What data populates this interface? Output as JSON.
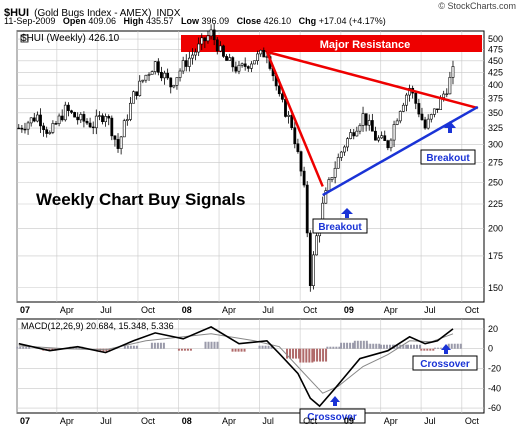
{
  "header": {
    "symbol": "$HUI",
    "index_name": "(Gold Bugs Index - AMEX)",
    "exchange": "INDX",
    "date": "11-Sep-2009",
    "open_label": "Open",
    "open": "409.06",
    "high_label": "High",
    "high": "435.57",
    "low_label": "Low",
    "low": "396.09",
    "close_label": "Close",
    "close": "426.10",
    "chg_label": "Chg",
    "chg": "+17.04 (+4.17%)",
    "logo": "© StockCharts.com"
  },
  "colors": {
    "resistance": "#ee0000",
    "support": "#1a33d6",
    "arrow": "#1a33d6",
    "candle": "#000000",
    "hist_pos": "#9a9aaa",
    "hist_neg": "#b06a6a",
    "grid": "#c8c8c8"
  },
  "chart_data": [
    {
      "type": "candlestick",
      "legend": "$HUI (Weekly) 426.10",
      "yscale": "log",
      "ylim": [
        140,
        520
      ],
      "yticks": [
        150,
        175,
        200,
        225,
        250,
        275,
        300,
        325,
        350,
        375,
        400,
        425,
        450,
        475,
        500,
        525
      ],
      "xticks": [
        "07",
        "Apr",
        "Jul",
        "Oct",
        "08",
        "Apr",
        "Jul",
        "Oct",
        "09",
        "Apr",
        "Jul",
        "Oct"
      ],
      "x_range": [
        "2007-01",
        "2009-11"
      ],
      "annotations": {
        "title": "Weekly Chart Buy Signals",
        "resistance_band": "Major Resistance",
        "breakout_1": "Breakout",
        "breakout_2": "Breakout"
      },
      "series": {
        "close_path": [
          [
            "2007-01-05",
            325
          ],
          [
            "2007-02-16",
            345
          ],
          [
            "2007-03-16",
            315
          ],
          [
            "2007-04-20",
            355
          ],
          [
            "2007-05-18",
            340
          ],
          [
            "2007-06-22",
            330
          ],
          [
            "2007-07-20",
            350
          ],
          [
            "2007-08-17",
            295
          ],
          [
            "2007-09-21",
            380
          ],
          [
            "2007-10-19",
            420
          ],
          [
            "2007-11-09",
            445
          ],
          [
            "2007-12-14",
            400
          ],
          [
            "2008-01-11",
            440
          ],
          [
            "2008-02-15",
            480
          ],
          [
            "2008-03-14",
            515
          ],
          [
            "2008-04-11",
            455
          ],
          [
            "2008-05-16",
            430
          ],
          [
            "2008-06-20",
            455
          ],
          [
            "2008-07-18",
            470
          ],
          [
            "2008-08-15",
            375
          ],
          [
            "2008-09-12",
            330
          ],
          [
            "2008-10-10",
            240
          ],
          [
            "2008-10-24",
            155
          ],
          [
            "2008-11-14",
            210
          ],
          [
            "2008-12-12",
            260
          ],
          [
            "2009-01-09",
            300
          ],
          [
            "2009-02-20",
            345
          ],
          [
            "2009-03-20",
            310
          ],
          [
            "2009-04-17",
            300
          ],
          [
            "2009-05-15",
            360
          ],
          [
            "2009-06-05",
            395
          ],
          [
            "2009-07-10",
            325
          ],
          [
            "2009-08-07",
            360
          ],
          [
            "2009-08-28",
            395
          ],
          [
            "2009-09-11",
            426
          ]
        ]
      },
      "resistance_lines": [
        {
          "from": [
            "2008-07-18",
            470
          ],
          "to": [
            "2008-11-21",
            245
          ]
        },
        {
          "from": [
            "2008-07-18",
            470
          ],
          "to": [
            "2009-11-06",
            358
          ]
        }
      ],
      "support_line": {
        "from": [
          "2008-11-21",
          235
        ],
        "to": [
          "2009-11-06",
          360
        ]
      }
    },
    {
      "type": "line",
      "legend": "MACD(12,26,9) 20.684, 15.348, 5.336",
      "series": [
        {
          "name": "MACD",
          "values": "20.684"
        },
        {
          "name": "Signal",
          "values": "15.348"
        },
        {
          "name": "Histogram",
          "values": "5.336"
        }
      ],
      "ylim": [
        -65,
        30
      ],
      "yticks": [
        20,
        0,
        -20,
        -40,
        -60
      ],
      "xticks": [
        "07",
        "Apr",
        "Jul",
        "Oct",
        "08",
        "Apr",
        "Jul",
        "Oct",
        "09",
        "Apr",
        "Jul",
        "Oct"
      ],
      "annotations": {
        "crossover_1": "Crossover",
        "crossover_2": "Crossover"
      },
      "macd_path": [
        [
          "2007-01-05",
          5
        ],
        [
          "2007-03-16",
          -2
        ],
        [
          "2007-05-18",
          2
        ],
        [
          "2007-07-20",
          -4
        ],
        [
          "2007-09-21",
          8
        ],
        [
          "2007-11-09",
          16
        ],
        [
          "2008-01-11",
          10
        ],
        [
          "2008-03-14",
          22
        ],
        [
          "2008-05-16",
          5
        ],
        [
          "2008-07-18",
          8
        ],
        [
          "2008-08-15",
          -5
        ],
        [
          "2008-09-26",
          -25
        ],
        [
          "2008-10-24",
          -50
        ],
        [
          "2008-11-14",
          -58
        ],
        [
          "2008-12-19",
          -40
        ],
        [
          "2009-02-13",
          -10
        ],
        [
          "2009-04-17",
          -2
        ],
        [
          "2009-06-05",
          12
        ],
        [
          "2009-07-10",
          5
        ],
        [
          "2009-08-07",
          8
        ],
        [
          "2009-09-11",
          20
        ]
      ],
      "signal_path": [
        [
          "2007-01-05",
          3
        ],
        [
          "2007-04-20",
          0
        ],
        [
          "2007-07-20",
          -1
        ],
        [
          "2007-10-19",
          8
        ],
        [
          "2008-01-11",
          12
        ],
        [
          "2008-03-14",
          15
        ],
        [
          "2008-06-20",
          8
        ],
        [
          "2008-08-15",
          2
        ],
        [
          "2008-10-10",
          -25
        ],
        [
          "2008-11-21",
          -45
        ],
        [
          "2008-12-26",
          -38
        ],
        [
          "2009-02-20",
          -18
        ],
        [
          "2009-04-17",
          -6
        ],
        [
          "2009-06-05",
          8
        ],
        [
          "2009-07-24",
          7
        ],
        [
          "2009-09-11",
          15
        ]
      ],
      "histogram": [
        [
          "2007-01",
          2
        ],
        [
          "2007-03",
          -2
        ],
        [
          "2007-05",
          2
        ],
        [
          "2007-07",
          -3
        ],
        [
          "2007-09",
          3
        ],
        [
          "2007-11",
          6
        ],
        [
          "2008-01",
          -2
        ],
        [
          "2008-03",
          7
        ],
        [
          "2008-05",
          -3
        ],
        [
          "2008-07",
          3
        ],
        [
          "2008-09",
          -10
        ],
        [
          "2008-10",
          -14
        ],
        [
          "2008-11",
          -13
        ],
        [
          "2008-12",
          2
        ],
        [
          "2009-01",
          6
        ],
        [
          "2009-02",
          8
        ],
        [
          "2009-03",
          5
        ],
        [
          "2009-04",
          4
        ],
        [
          "2009-05",
          4
        ],
        [
          "2009-06",
          4
        ],
        [
          "2009-07",
          -2
        ],
        [
          "2009-08",
          1
        ],
        [
          "2009-09",
          5
        ]
      ]
    }
  ]
}
